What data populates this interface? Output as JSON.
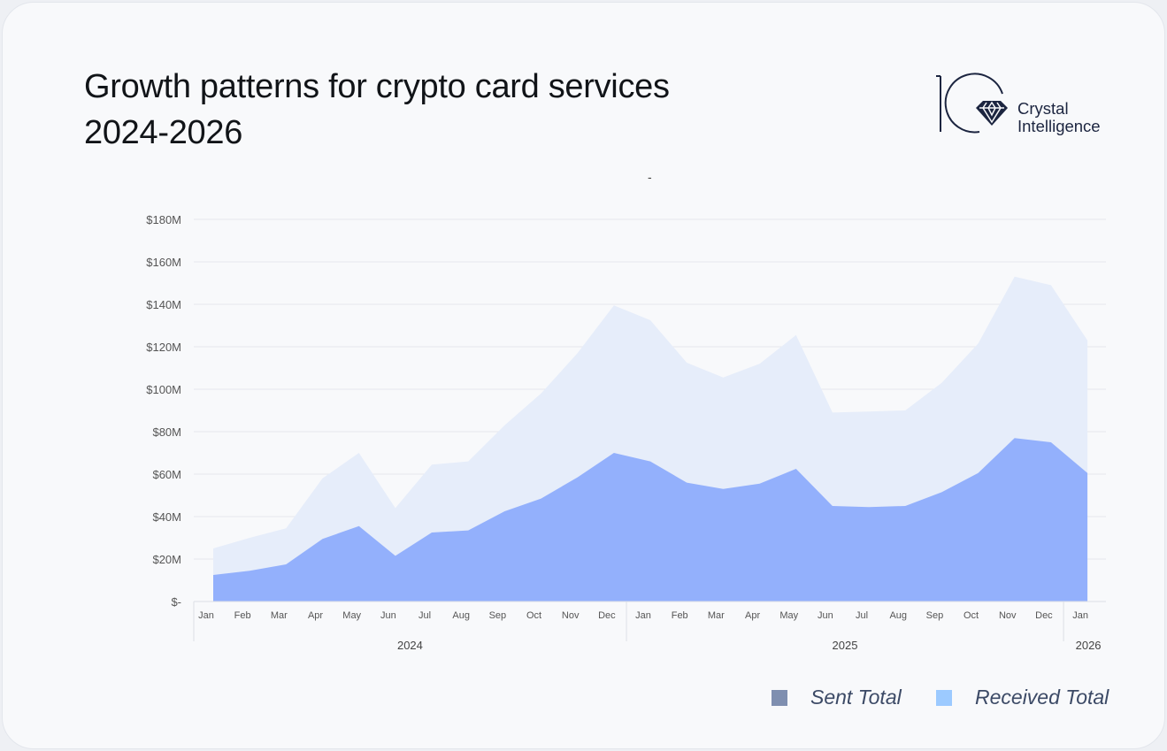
{
  "header": {
    "title_line1": "Growth patterns for crypto card services",
    "title_line2": "2024-2026",
    "logo_text_line1": "Crystal",
    "logo_text_line2": "Intelligence"
  },
  "chart_data": {
    "type": "area",
    "stacked": true,
    "subtitle": "-",
    "yticks": [
      "$-",
      "$20M",
      "$40M",
      "$60M",
      "$80M",
      "$100M",
      "$120M",
      "$140M",
      "$160M",
      "$180M"
    ],
    "ylim": [
      0,
      180
    ],
    "yunit": "$M",
    "grid": true,
    "legend_placement": "bottom-right",
    "categories": [
      "Jan",
      "Feb",
      "Mar",
      "Apr",
      "May",
      "Jun",
      "Jul",
      "Aug",
      "Sep",
      "Oct",
      "Nov",
      "Dec",
      "Jan",
      "Feb",
      "Mar",
      "Apr",
      "May",
      "Jun",
      "Jul",
      "Aug",
      "Sep",
      "Oct",
      "Nov",
      "Dec",
      "Jan"
    ],
    "years": [
      {
        "label": "2024",
        "months": 12
      },
      {
        "label": "2025",
        "months": 12
      },
      {
        "label": "2026",
        "months": 1
      }
    ],
    "series": [
      {
        "name": "Sent Total",
        "legend_color": "#7f8fb0",
        "fill_color": "#93b0fc",
        "values": [
          12.5,
          14.5,
          17.5,
          29.5,
          35.5,
          21.5,
          32.5,
          33.5,
          42.5,
          48.5,
          58.5,
          70,
          66,
          56,
          53,
          55.5,
          62.5,
          45,
          44.5,
          45,
          51.5,
          60.5,
          77,
          75,
          60.5
        ]
      },
      {
        "name": "Received Total",
        "legend_color": "#9ccaff",
        "fill_color": "#e6edfa",
        "values": [
          12.5,
          15.5,
          17,
          28.5,
          34.5,
          22.5,
          32,
          32.5,
          40.5,
          49.5,
          58.5,
          69.5,
          66.5,
          56.5,
          52.5,
          56.5,
          63,
          44,
          45,
          45,
          51.5,
          61,
          76,
          74,
          62.5
        ]
      }
    ]
  }
}
